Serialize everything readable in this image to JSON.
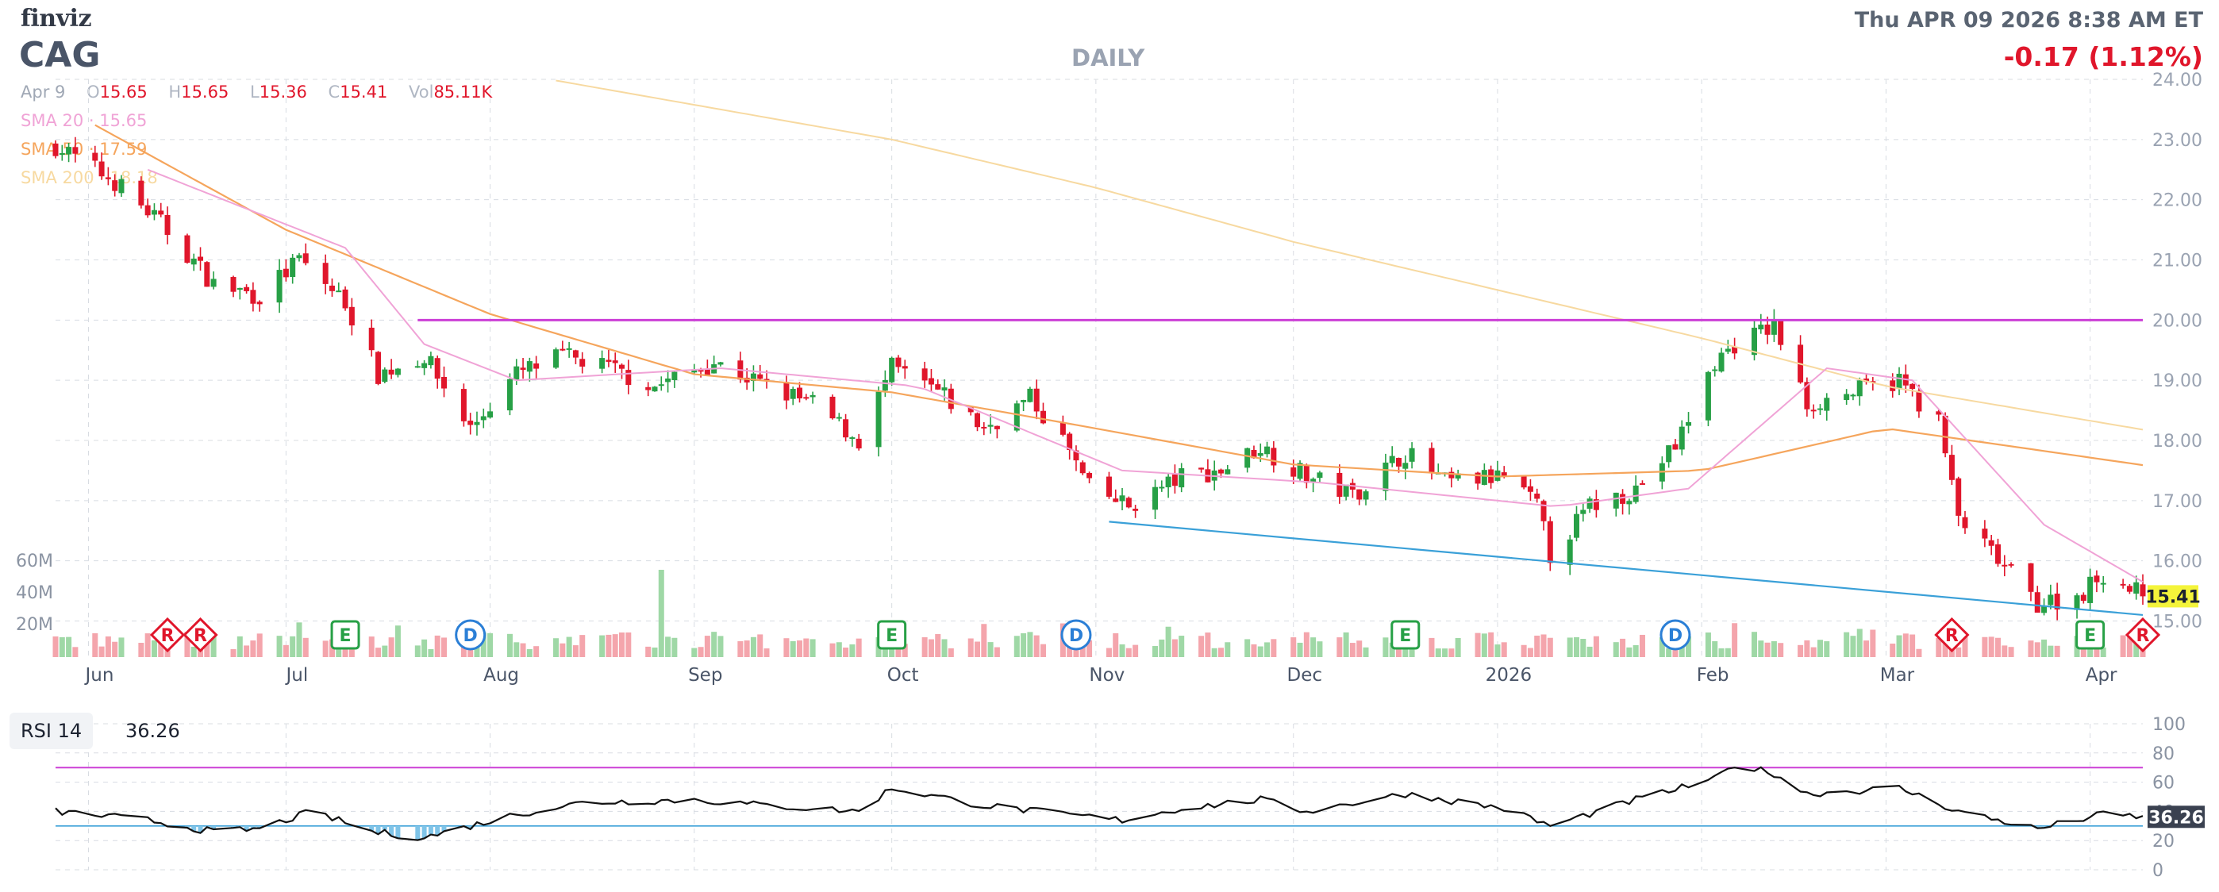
{
  "header": {
    "logo": "finviz",
    "ticker": "CAG",
    "timeframe": "DAILY",
    "datetime": "Thu APR 09 2026 8:38 AM ET",
    "change": "-0.17 (1.12%)"
  },
  "ohlc": {
    "date": "Apr 9",
    "open_label": "O",
    "open": "15.65",
    "high_label": "H",
    "high": "15.65",
    "low_label": "L",
    "low": "15.36",
    "close_label": "C",
    "close": "15.41",
    "vol_label": "Vol",
    "volume": "85.11K"
  },
  "sma": [
    {
      "label": "SMA 20",
      "value": "15.65",
      "color": "#f0a3d6"
    },
    {
      "label": "SMA 50",
      "value": "17.59",
      "color": "#f5a55c"
    },
    {
      "label": "SMA 200",
      "value": "18.18",
      "color": "#f7d9a0"
    }
  ],
  "colors": {
    "up": "#27a046",
    "down": "#e0162b",
    "vol_up": "#9fd8a6",
    "vol_down": "#f4a5ac",
    "resistance": "#cc3fd6",
    "support": "#3aa0d8",
    "price_tag": "#f4f43a"
  },
  "rsi": {
    "label": "RSI 14",
    "value": "36.26",
    "ticks": [
      "100",
      "80",
      "60",
      "40",
      "20",
      "0"
    ]
  },
  "events": [
    {
      "type": "R",
      "date": "2025-06-13"
    },
    {
      "type": "R",
      "date": "2025-06-18"
    },
    {
      "type": "E",
      "date": "2025-07-10"
    },
    {
      "type": "D",
      "date": "2025-07-29"
    },
    {
      "type": "E",
      "date": "2025-10-01"
    },
    {
      "type": "D",
      "date": "2025-10-29"
    },
    {
      "type": "E",
      "date": "2025-12-18"
    },
    {
      "type": "D",
      "date": "2026-01-28"
    },
    {
      "type": "R",
      "date": "2026-03-11"
    },
    {
      "type": "E",
      "date": "2026-04-01"
    },
    {
      "type": "R",
      "date": "2026-04-09"
    }
  ],
  "chart_data": {
    "type": "candlestick",
    "y_ticks": [
      "24.00",
      "23.00",
      "22.00",
      "21.00",
      "20.00",
      "19.00",
      "18.00",
      "17.00",
      "16.00",
      "15.00"
    ],
    "ylim": [
      14.4,
      24.0
    ],
    "volume_ticks": [
      "60M",
      "40M",
      "20M"
    ],
    "x_ticks": [
      "Jun",
      "Jul",
      "Aug",
      "Sep",
      "Oct",
      "Nov",
      "Dec",
      "2026",
      "Feb",
      "Mar",
      "Apr"
    ],
    "last_price": "15.41",
    "trendlines": [
      {
        "name": "resistance",
        "from": [
          "2025-07-21",
          20.0
        ],
        "to": [
          "2026-04-09",
          20.0
        ]
      },
      {
        "name": "support",
        "from": [
          "2025-11-03",
          16.65
        ],
        "to": [
          "2026-04-09",
          15.1
        ]
      }
    ],
    "anchors": [
      [
        "2025-05-27",
        22.9
      ],
      [
        "2025-06-05",
        22.3
      ],
      [
        "2025-06-12",
        21.6
      ],
      [
        "2025-06-20",
        20.6
      ],
      [
        "2025-06-27",
        20.4
      ],
      [
        "2025-07-03",
        21.0
      ],
      [
        "2025-07-10",
        20.3
      ],
      [
        "2025-07-15",
        19.1
      ],
      [
        "2025-07-22",
        19.4
      ],
      [
        "2025-07-29",
        18.2
      ],
      [
        "2025-08-05",
        19.1
      ],
      [
        "2025-08-12",
        19.4
      ],
      [
        "2025-08-19",
        19.2
      ],
      [
        "2025-08-26",
        18.9
      ],
      [
        "2025-09-04",
        19.3
      ],
      [
        "2025-09-12",
        18.9
      ],
      [
        "2025-09-19",
        18.6
      ],
      [
        "2025-09-26",
        18.0
      ],
      [
        "2025-10-01",
        19.2
      ],
      [
        "2025-10-08",
        18.8
      ],
      [
        "2025-10-15",
        18.2
      ],
      [
        "2025-10-22",
        18.7
      ],
      [
        "2025-10-27",
        18.0
      ],
      [
        "2025-10-31",
        17.2
      ],
      [
        "2025-11-06",
        16.9
      ],
      [
        "2025-11-14",
        17.4
      ],
      [
        "2025-11-20",
        17.5
      ],
      [
        "2025-11-26",
        17.9
      ],
      [
        "2025-12-03",
        17.4
      ],
      [
        "2025-12-10",
        17.1
      ],
      [
        "2025-12-18",
        17.8
      ],
      [
        "2025-12-24",
        17.3
      ],
      [
        "2026-01-02",
        17.4
      ],
      [
        "2026-01-07",
        16.9
      ],
      [
        "2026-01-09",
        16.1
      ],
      [
        "2026-01-15",
        16.9
      ],
      [
        "2026-01-22",
        17.2
      ],
      [
        "2026-01-28",
        17.9
      ],
      [
        "2026-02-03",
        19.3
      ],
      [
        "2026-02-06",
        19.6
      ],
      [
        "2026-02-12",
        19.9
      ],
      [
        "2026-02-17",
        18.6
      ],
      [
        "2026-02-24",
        18.8
      ],
      [
        "2026-03-03",
        19.0
      ],
      [
        "2026-03-09",
        18.3
      ],
      [
        "2026-03-12",
        16.7
      ],
      [
        "2026-03-18",
        16.0
      ],
      [
        "2026-03-24",
        15.3
      ],
      [
        "2026-03-30",
        15.4
      ],
      [
        "2026-04-03",
        15.8
      ],
      [
        "2026-04-09",
        15.41
      ]
    ],
    "sma20_anchors": [
      [
        "2025-06-10",
        22.5
      ],
      [
        "2025-07-10",
        21.2
      ],
      [
        "2025-07-22",
        19.6
      ],
      [
        "2025-08-05",
        19.0
      ],
      [
        "2025-09-05",
        19.2
      ],
      [
        "2025-10-05",
        18.9
      ],
      [
        "2025-11-05",
        17.5
      ],
      [
        "2025-12-05",
        17.3
      ],
      [
        "2026-01-10",
        16.9
      ],
      [
        "2026-01-30",
        17.2
      ],
      [
        "2026-02-20",
        19.2
      ],
      [
        "2026-03-05",
        19.0
      ],
      [
        "2026-03-25",
        16.6
      ],
      [
        "2026-04-09",
        15.65
      ]
    ],
    "sma50_anchors": [
      [
        "2025-06-01",
        23.3
      ],
      [
        "2025-07-01",
        21.5
      ],
      [
        "2025-08-01",
        20.1
      ],
      [
        "2025-09-01",
        19.1
      ],
      [
        "2025-10-01",
        18.8
      ],
      [
        "2025-11-01",
        18.2
      ],
      [
        "2025-12-01",
        17.6
      ],
      [
        "2026-01-01",
        17.4
      ],
      [
        "2026-02-01",
        17.5
      ],
      [
        "2026-03-01",
        18.2
      ],
      [
        "2026-04-09",
        17.59
      ]
    ],
    "sma200_anchors": [
      [
        "2025-08-10",
        24.0
      ],
      [
        "2025-10-01",
        23.0
      ],
      [
        "2025-11-01",
        22.2
      ],
      [
        "2025-12-01",
        21.3
      ],
      [
        "2026-01-01",
        20.5
      ],
      [
        "2026-02-01",
        19.7
      ],
      [
        "2026-03-01",
        18.9
      ],
      [
        "2026-04-09",
        18.18
      ]
    ],
    "rsi_anchors": [
      [
        "2025-05-27",
        40
      ],
      [
        "2025-06-10",
        34
      ],
      [
        "2025-06-20",
        26
      ],
      [
        "2025-06-27",
        28
      ],
      [
        "2025-07-05",
        40
      ],
      [
        "2025-07-14",
        26
      ],
      [
        "2025-07-22",
        22
      ],
      [
        "2025-08-05",
        38
      ],
      [
        "2025-08-15",
        46
      ],
      [
        "2025-09-01",
        48
      ],
      [
        "2025-09-12",
        44
      ],
      [
        "2025-09-26",
        40
      ],
      [
        "2025-10-01",
        56
      ],
      [
        "2025-10-15",
        44
      ],
      [
        "2025-10-27",
        38
      ],
      [
        "2025-11-05",
        34
      ],
      [
        "2025-11-14",
        42
      ],
      [
        "2025-11-26",
        48
      ],
      [
        "2025-12-03",
        40
      ],
      [
        "2025-12-18",
        52
      ],
      [
        "2026-01-02",
        42
      ],
      [
        "2026-01-09",
        30
      ],
      [
        "2026-01-22",
        48
      ],
      [
        "2026-02-03",
        62
      ],
      [
        "2026-02-06",
        72
      ],
      [
        "2026-02-12",
        66
      ],
      [
        "2026-02-17",
        52
      ],
      [
        "2026-03-03",
        56
      ],
      [
        "2026-03-12",
        40
      ],
      [
        "2026-03-24",
        28
      ],
      [
        "2026-04-03",
        38
      ],
      [
        "2026-04-09",
        36.26
      ]
    ]
  }
}
